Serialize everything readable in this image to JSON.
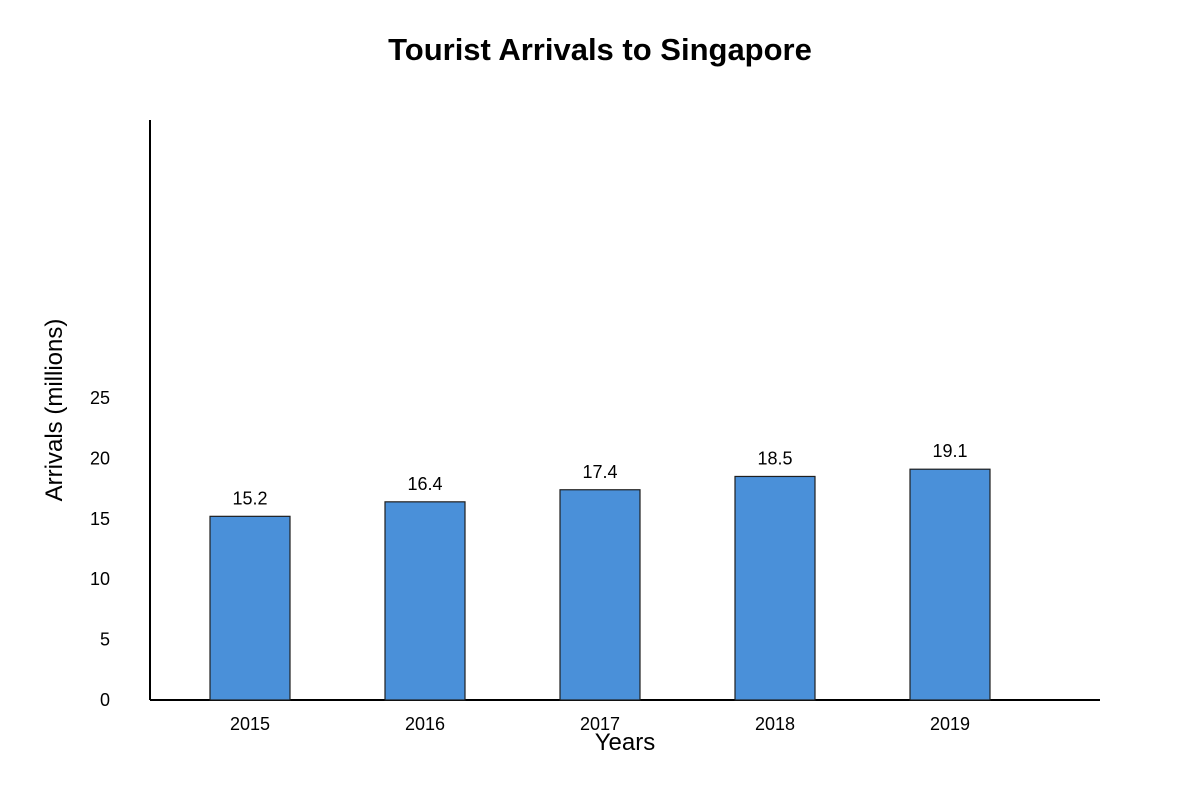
{
  "chart_data": {
    "type": "bar",
    "title": "Tourist Arrivals to Singapore",
    "xlabel": "Years",
    "ylabel": "Arrivals (millions)",
    "categories": [
      "2015",
      "2016",
      "2017",
      "2018",
      "2019"
    ],
    "values": [
      15.2,
      16.4,
      17.4,
      18.5,
      19.1
    ],
    "data_labels": [
      "15.2",
      "16.4",
      "17.4",
      "18.5",
      "19.1"
    ],
    "y_ticks": [
      0,
      5,
      10,
      15,
      20,
      25
    ],
    "ylim": [
      0,
      48
    ],
    "grid": false,
    "legend": "none",
    "colors": {
      "bar": "#4a90d9",
      "bar_edge": "#1f1f1f",
      "axis": "#000000",
      "text": "#000000"
    }
  }
}
